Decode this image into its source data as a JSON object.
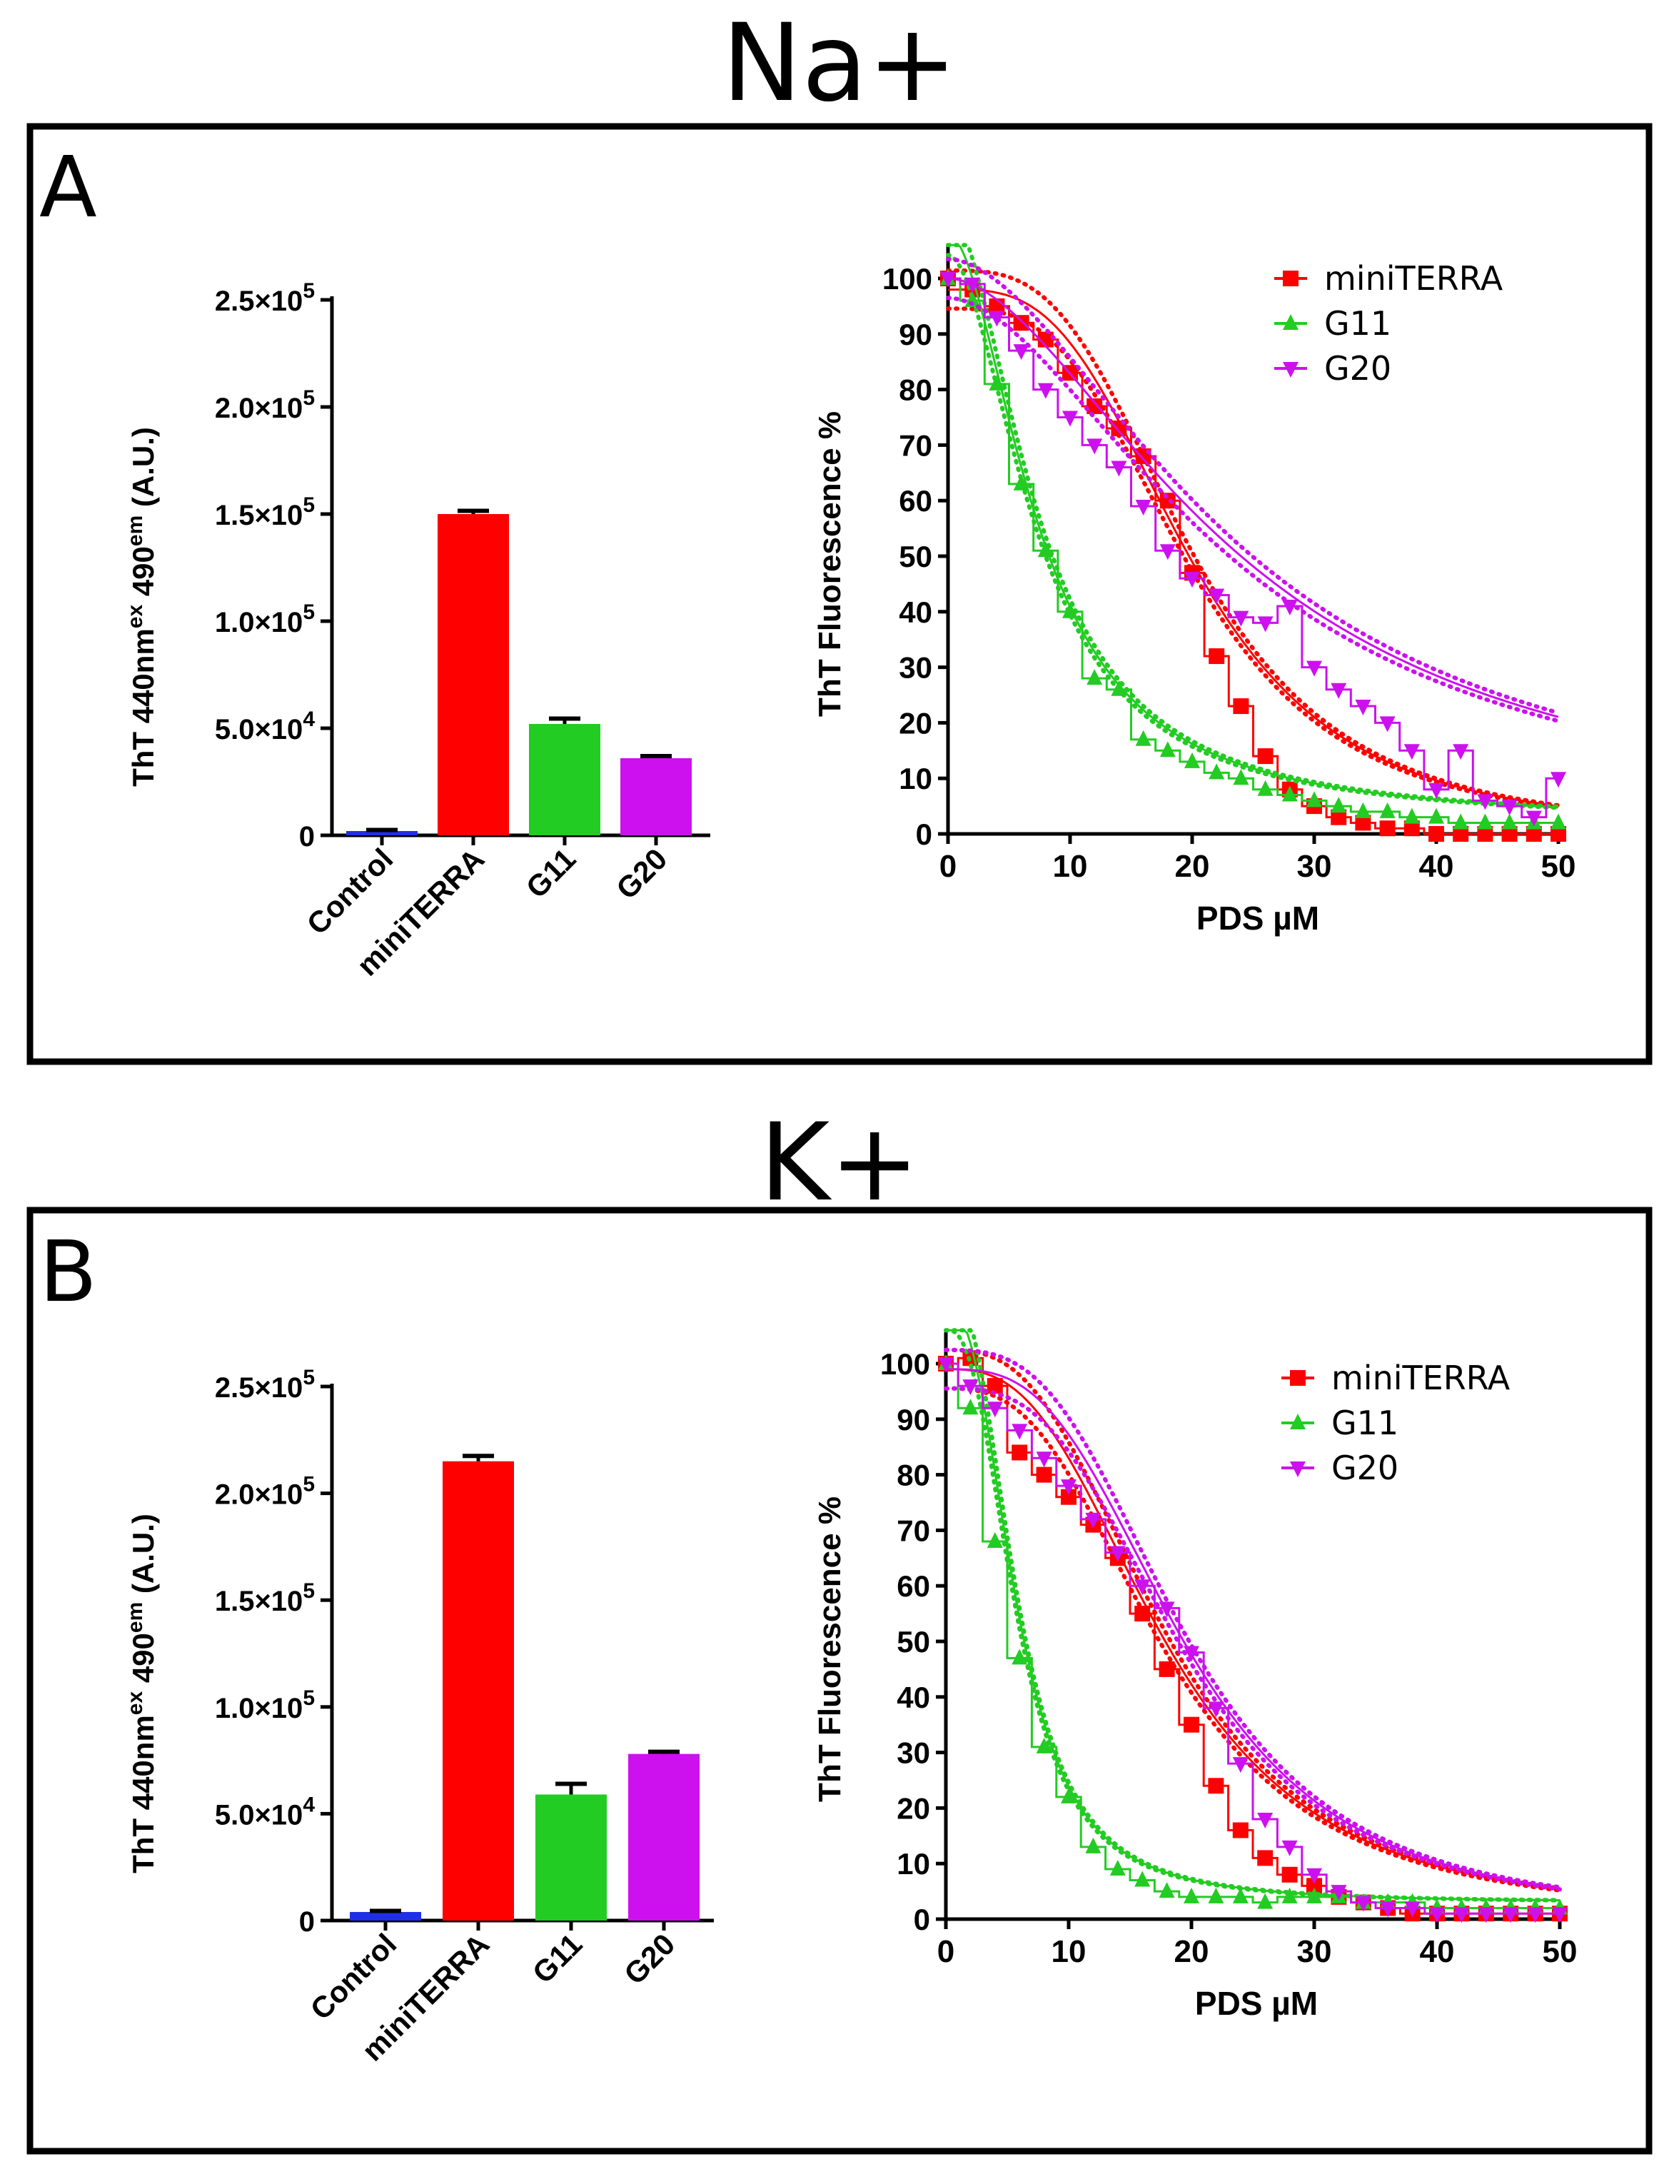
{
  "figure": {
    "panels": [
      {
        "ion_title": "Na+",
        "letter": "A",
        "bar_chart": {
          "ylabel": "ThT 440nm",
          "ylabel_sup1": "ex",
          "ylabel_mid": " 490",
          "ylabel_sup2": "em",
          "ylabel_end": " (A.U.)",
          "ytick_labels": [
            "0",
            "5.0×10",
            "1.0×10",
            "1.5×10",
            "2.0×10",
            "2.5×10"
          ],
          "ytick_exps": [
            "",
            "4",
            "5",
            "5",
            "5",
            "5"
          ]
        },
        "curve_chart": {
          "ylabel": "ThT Fluorescence %",
          "xlabel": "PDS µM",
          "xtick_labels": [
            "0",
            "10",
            "20",
            "30",
            "40",
            "50"
          ],
          "ytick_labels": [
            "0",
            "10",
            "20",
            "30",
            "40",
            "50",
            "60",
            "70",
            "80",
            "90",
            "100"
          ],
          "legend": [
            "miniTERRA",
            "G11",
            "G20"
          ]
        }
      },
      {
        "ion_title": "K+",
        "letter": "B",
        "bar_chart": {
          "ylabel": "ThT 440nm",
          "ylabel_sup1": "ex",
          "ylabel_mid": " 490",
          "ylabel_sup2": "em",
          "ylabel_end": " (A.U.)",
          "ytick_labels": [
            "0",
            "5.0×10",
            "1.0×10",
            "1.5×10",
            "2.0×10",
            "2.5×10"
          ],
          "ytick_exps": [
            "",
            "4",
            "5",
            "5",
            "5",
            "5"
          ]
        },
        "curve_chart": {
          "ylabel": "ThT Fluorescence %",
          "xlabel": "PDS µM",
          "xtick_labels": [
            "0",
            "10",
            "20",
            "30",
            "40",
            "50"
          ],
          "ytick_labels": [
            "0",
            "10",
            "20",
            "30",
            "40",
            "50",
            "60",
            "70",
            "80",
            "90",
            "100"
          ],
          "legend": [
            "miniTERRA",
            "G11",
            "G20"
          ]
        }
      }
    ]
  },
  "chart_data": [
    {
      "type": "bar",
      "panel": "A",
      "title": "Na+",
      "categories": [
        "Control",
        "miniTERRA",
        "G11",
        "G20"
      ],
      "values": [
        2000,
        150000,
        52000,
        36000
      ],
      "errors": [
        500,
        1500,
        2500,
        1000
      ],
      "colors": [
        "#1f2fe6",
        "#ff0000",
        "#22cc22",
        "#cc11ee"
      ],
      "ylabel": "ThT 440nm ex 490 em (A.U.)",
      "ylim": [
        0,
        250000
      ]
    },
    {
      "type": "line",
      "panel": "A",
      "title": "Na+",
      "xlabel": "PDS µM",
      "ylabel": "ThT Fluorescence %",
      "xlim": [
        0,
        50
      ],
      "ylim": [
        0,
        100
      ],
      "x": [
        0,
        2,
        4,
        6,
        8,
        10,
        12,
        14,
        16,
        18,
        20,
        22,
        24,
        26,
        28,
        30,
        32,
        34,
        36,
        38,
        40,
        42,
        44,
        46,
        48,
        50
      ],
      "series": [
        {
          "name": "miniTERRA",
          "color": "#ff0000",
          "marker": "square",
          "values": [
            100,
            98,
            95,
            92,
            89,
            83,
            77,
            73,
            68,
            60,
            47,
            32,
            23,
            14,
            8,
            5,
            3,
            2,
            1,
            1,
            0,
            0,
            0,
            0,
            0,
            0
          ],
          "fit": {
            "top": 98,
            "bottom": 0,
            "ec50": 20,
            "hill": 3.2
          }
        },
        {
          "name": "G11",
          "color": "#22cc22",
          "marker": "triangle-up",
          "values": [
            100,
            96,
            81,
            63,
            51,
            40,
            28,
            26,
            17,
            15,
            13,
            11,
            10,
            8,
            7,
            6,
            5,
            4,
            4,
            3,
            3,
            2,
            2,
            2,
            2,
            2
          ],
          "fit": {
            "top": 108,
            "bottom": 2,
            "ec50": 7.5,
            "hill": 1.9
          }
        },
        {
          "name": "G20",
          "color": "#cc11ee",
          "marker": "triangle-down",
          "values": [
            100,
            99,
            93,
            87,
            80,
            75,
            70,
            66,
            59,
            51,
            46,
            43,
            39,
            38,
            41,
            30,
            26,
            23,
            20,
            15,
            8,
            15,
            6,
            5,
            3,
            10
          ],
          "fit": {
            "top": 100,
            "bottom": 0,
            "ec50": 24,
            "hill": 1.8
          }
        }
      ]
    },
    {
      "type": "bar",
      "panel": "B",
      "title": "K+",
      "categories": [
        "Control",
        "miniTERRA",
        "G11",
        "G20"
      ],
      "values": [
        4000,
        215000,
        59000,
        78000
      ],
      "errors": [
        500,
        2500,
        5000,
        1000
      ],
      "colors": [
        "#1f2fe6",
        "#ff0000",
        "#22cc22",
        "#cc11ee"
      ],
      "ylabel": "ThT 440nm ex 490 em (A.U.)",
      "ylim": [
        0,
        250000
      ]
    },
    {
      "type": "line",
      "panel": "B",
      "title": "K+",
      "xlabel": "PDS µM",
      "ylabel": "ThT Fluorescence %",
      "xlim": [
        0,
        50
      ],
      "ylim": [
        0,
        100
      ],
      "x": [
        0,
        2,
        4,
        6,
        8,
        10,
        12,
        14,
        16,
        18,
        20,
        22,
        24,
        26,
        28,
        30,
        32,
        34,
        36,
        38,
        40,
        42,
        44,
        46,
        48,
        50
      ],
      "series": [
        {
          "name": "miniTERRA",
          "color": "#ff0000",
          "marker": "square",
          "values": [
            100,
            101,
            96,
            84,
            80,
            76,
            71,
            65,
            55,
            45,
            35,
            24,
            16,
            11,
            8,
            6,
            4,
            3,
            2,
            1,
            1,
            1,
            1,
            1,
            1,
            1
          ],
          "fit": {
            "top": 99,
            "bottom": 0,
            "ec50": 18,
            "hill": 2.8
          }
        },
        {
          "name": "G11",
          "color": "#22cc22",
          "marker": "triangle-up",
          "values": [
            100,
            92,
            68,
            47,
            31,
            22,
            13,
            9,
            7,
            5,
            4,
            4,
            4,
            3,
            4,
            4,
            4,
            3,
            3,
            3,
            2,
            2,
            2,
            2,
            2,
            2
          ],
          "fit": {
            "top": 110,
            "bottom": 3,
            "ec50": 5.8,
            "hill": 2.6
          }
        },
        {
          "name": "G20",
          "color": "#cc11ee",
          "marker": "triangle-down",
          "values": [
            100,
            96,
            92,
            88,
            83,
            78,
            72,
            66,
            60,
            56,
            48,
            38,
            28,
            18,
            13,
            8,
            5,
            3,
            2,
            2,
            1,
            1,
            1,
            1,
            1,
            1
          ],
          "fit": {
            "top": 99,
            "bottom": 0,
            "ec50": 19.5,
            "hill": 3.0
          }
        }
      ]
    }
  ]
}
